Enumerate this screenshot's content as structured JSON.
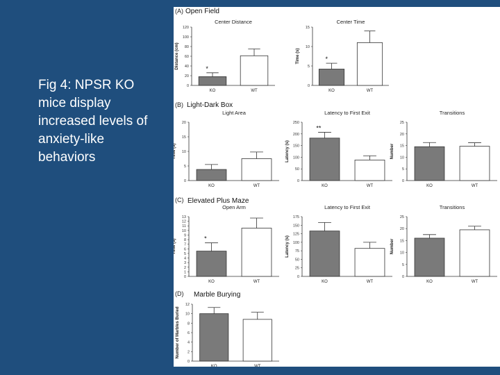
{
  "slide": {
    "caption": "Fig 4: NPSR KO mice display increased levels of anxiety-like behaviors"
  },
  "sections": [
    {
      "label": "(A)",
      "title": "Open Field"
    },
    {
      "label": "(B)",
      "title": "Light-Dark Box"
    },
    {
      "label": "(C)",
      "title": "Elevated Plus Maze"
    },
    {
      "label": "(D)",
      "title": "Marble Burying"
    }
  ],
  "colors": {
    "ko": "#7a7a7a",
    "wt": "#ffffff",
    "axis": "#333333"
  },
  "chart_data": [
    {
      "id": "center-distance",
      "type": "bar",
      "title": "Center Distance",
      "ylabel": "Distance (cm)",
      "categories": [
        "KO",
        "WT"
      ],
      "values": [
        18,
        61
      ],
      "errors": [
        8,
        14
      ],
      "sig": [
        "*",
        ""
      ],
      "ylim": [
        0,
        120
      ],
      "yticks": [
        0,
        20,
        40,
        60,
        80,
        100,
        120
      ]
    },
    {
      "id": "center-time",
      "type": "bar",
      "title": "Center Time",
      "ylabel": "Time (s)",
      "categories": [
        "KO",
        "WT"
      ],
      "values": [
        4.2,
        11
      ],
      "errors": [
        1.5,
        3
      ],
      "sig": [
        "*",
        ""
      ],
      "ylim": [
        0,
        15
      ],
      "yticks": [
        0,
        5,
        10,
        15
      ]
    },
    {
      "id": "light-area",
      "type": "bar",
      "title": "Light Area",
      "ylabel": "Time (s)",
      "categories": [
        "KO",
        "WT"
      ],
      "values": [
        3.8,
        7.5
      ],
      "errors": [
        1.7,
        2.3
      ],
      "sig": [
        "",
        ""
      ],
      "ylim": [
        0,
        20
      ],
      "yticks": [
        0,
        5,
        10,
        15,
        20
      ]
    },
    {
      "id": "latency-first-exit-ldb",
      "type": "bar",
      "title": "Latency to First Exit",
      "ylabel": "Latency (s)",
      "categories": [
        "KO",
        "WT"
      ],
      "values": [
        182,
        88
      ],
      "errors": [
        25,
        18
      ],
      "sig": [
        "**",
        ""
      ],
      "ylim": [
        0,
        250
      ],
      "yticks": [
        0,
        50,
        100,
        150,
        200,
        250
      ]
    },
    {
      "id": "transitions-ldb",
      "type": "bar",
      "title": "Transitions",
      "ylabel": "Number",
      "categories": [
        "KO",
        "WT"
      ],
      "values": [
        14.5,
        14.7
      ],
      "errors": [
        1.8,
        1.5
      ],
      "sig": [
        "",
        ""
      ],
      "ylim": [
        0,
        25
      ],
      "yticks": [
        0,
        5,
        10,
        15,
        20,
        25
      ]
    },
    {
      "id": "open-arm",
      "type": "bar",
      "title": "Open Arm",
      "ylabel": "Time (s)",
      "categories": [
        "KO",
        "WT"
      ],
      "values": [
        5.5,
        10.5
      ],
      "errors": [
        1.8,
        2.2
      ],
      "sig": [
        "*",
        ""
      ],
      "ylim": [
        0,
        13
      ],
      "yticks": [
        0,
        1,
        2,
        3,
        4,
        5,
        6,
        7,
        8,
        9,
        10,
        11,
        12,
        13
      ]
    },
    {
      "id": "latency-first-exit-epm",
      "type": "bar",
      "title": "Latency to First Exit",
      "ylabel": "Latency (s)",
      "categories": [
        "KO",
        "WT"
      ],
      "values": [
        133,
        82
      ],
      "errors": [
        25,
        18
      ],
      "sig": [
        "",
        ""
      ],
      "ylim": [
        0,
        175
      ],
      "yticks": [
        0,
        25,
        50,
        75,
        100,
        125,
        150,
        175
      ]
    },
    {
      "id": "transitions-epm",
      "type": "bar",
      "title": "Transitions",
      "ylabel": "Number",
      "categories": [
        "KO",
        "WT"
      ],
      "values": [
        16,
        19.5
      ],
      "errors": [
        1.5,
        1.5
      ],
      "sig": [
        "",
        ""
      ],
      "ylim": [
        0,
        25
      ],
      "yticks": [
        0,
        5,
        10,
        15,
        20,
        25
      ]
    },
    {
      "id": "marble-burying",
      "type": "bar",
      "title": "",
      "ylabel": "Number of Marbles Buried",
      "categories": [
        "KO",
        "WT"
      ],
      "values": [
        10,
        8.8
      ],
      "errors": [
        1.3,
        1.5
      ],
      "sig": [
        "",
        ""
      ],
      "ylim": [
        0,
        12
      ],
      "yticks": [
        0,
        2,
        4,
        6,
        8,
        10,
        12
      ]
    }
  ]
}
